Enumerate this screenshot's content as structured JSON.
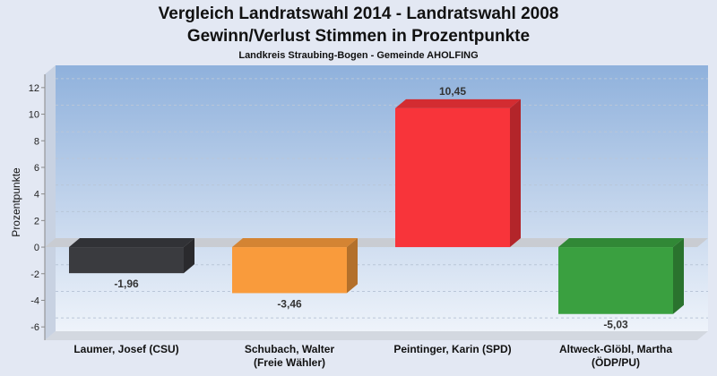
{
  "chart_data": {
    "type": "bar",
    "title_line1": "Vergleich Landratswahl 2014 - Landratswahl 2008",
    "title_line2": "Gewinn/Verlust Stimmen in Prozentpunkte",
    "subtitle": "Landkreis Straubing-Bogen - Gemeinde AHOLFING",
    "ylabel": "Prozentpunkte",
    "xlabel": "",
    "ylim": [
      -7,
      13
    ],
    "yticks": [
      -6,
      -4,
      -2,
      0,
      2,
      4,
      6,
      8,
      10,
      12
    ],
    "grid": true,
    "categories": [
      [
        "Laumer, Josef (CSU)"
      ],
      [
        "Schubach, Walter",
        "(Freie Wähler)"
      ],
      [
        "Peintinger, Karin (SPD)"
      ],
      [
        "Altweck-Glöbl, Martha",
        "(ÖDP/PU)"
      ]
    ],
    "values": [
      -1.96,
      -3.46,
      10.45,
      -5.03
    ],
    "value_labels": [
      "-1,96",
      "-3,46",
      "10,45",
      "-5,03"
    ],
    "colors": [
      "#3a3b3f",
      "#f99b3c",
      "#f8343a",
      "#3aa040"
    ]
  }
}
